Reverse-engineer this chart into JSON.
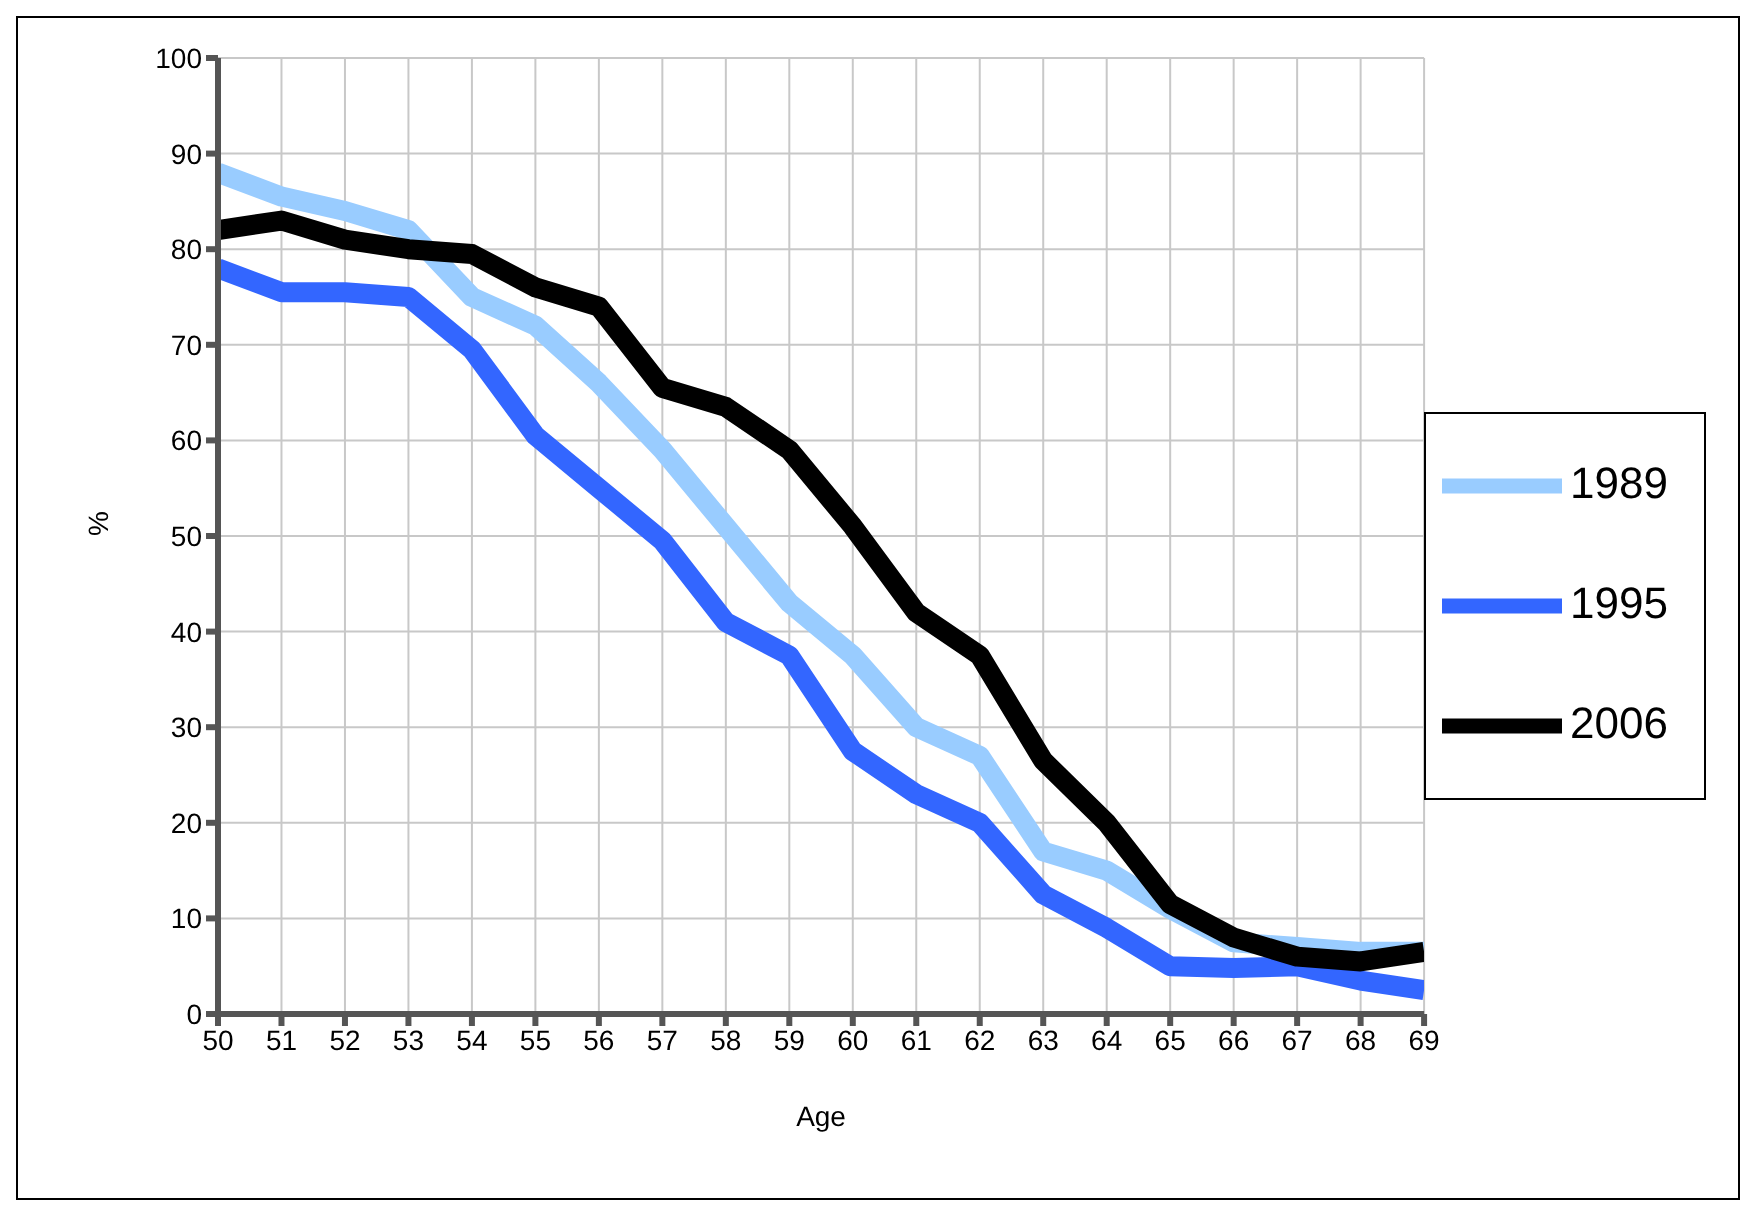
{
  "chart_data": {
    "type": "line",
    "xlabel": "Age",
    "ylabel": "%",
    "x": [
      50,
      51,
      52,
      53,
      54,
      55,
      56,
      57,
      58,
      59,
      60,
      61,
      62,
      63,
      64,
      65,
      66,
      67,
      68,
      69
    ],
    "xlim": [
      50,
      69
    ],
    "xticks": [
      50,
      51,
      52,
      53,
      54,
      55,
      56,
      57,
      58,
      59,
      60,
      61,
      62,
      63,
      64,
      65,
      66,
      67,
      68,
      69
    ],
    "ylim": [
      0,
      100
    ],
    "yticks": [
      0,
      10,
      20,
      30,
      40,
      50,
      60,
      70,
      80,
      90,
      100
    ],
    "grid": true,
    "legend": "right",
    "marker": "none",
    "line_style": "solid",
    "series": [
      {
        "name": "1989",
        "color": "#99ccff",
        "values": [
          88,
          85.5,
          84,
          82,
          75,
          72,
          66,
          59,
          51,
          43,
          37.5,
          30,
          27,
          17,
          15,
          11,
          7.5,
          7,
          6.5,
          6.5
        ]
      },
      {
        "name": "1995",
        "color": "#3366ff",
        "values": [
          78,
          75.5,
          75.5,
          75,
          69.5,
          60.5,
          55,
          49.5,
          41,
          37.5,
          27.5,
          23,
          20,
          12.5,
          9,
          5,
          4.8,
          5,
          3.5,
          2.5
        ]
      },
      {
        "name": "2006",
        "color": "#000000",
        "values": [
          82,
          83,
          81,
          80,
          79.5,
          76,
          74,
          65.5,
          63.5,
          59,
          51,
          42,
          37.5,
          26.5,
          20,
          11.5,
          8,
          6,
          5.5,
          6.5
        ]
      }
    ]
  }
}
